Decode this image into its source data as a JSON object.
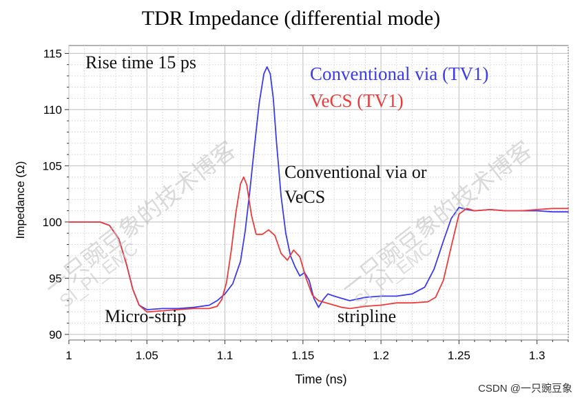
{
  "chart_data": {
    "type": "line",
    "title": "TDR Impedance (differential mode)",
    "xlabel": "Time (ns)",
    "ylabel": "Impedance (Ω)",
    "xlim": [
      1.0,
      1.32
    ],
    "ylim": [
      89.5,
      115.7
    ],
    "xticks": [
      "1",
      "1.05",
      "1.1",
      "1.15",
      "1.2",
      "1.25",
      "1.3"
    ],
    "yticks": [
      "90",
      "95",
      "100",
      "105",
      "110",
      "115"
    ],
    "grid": true,
    "legend_position": "top-right",
    "series": [
      {
        "name": "Conventional via (TV1)",
        "color": "#3a3aee",
        "x": [
          1.0,
          1.02,
          1.026,
          1.032,
          1.037,
          1.041,
          1.045,
          1.05,
          1.06,
          1.07,
          1.08,
          1.09,
          1.095,
          1.1,
          1.105,
          1.11,
          1.113,
          1.116,
          1.119,
          1.122,
          1.125,
          1.127,
          1.129,
          1.131,
          1.133,
          1.136,
          1.139,
          1.142,
          1.145,
          1.148,
          1.151,
          1.154,
          1.157,
          1.16,
          1.163,
          1.166,
          1.17,
          1.175,
          1.18,
          1.19,
          1.2,
          1.21,
          1.22,
          1.228,
          1.234,
          1.24,
          1.245,
          1.25,
          1.255,
          1.26,
          1.27,
          1.28,
          1.29,
          1.3,
          1.31,
          1.32
        ],
        "y": [
          100.0,
          100.0,
          99.7,
          98.5,
          96.2,
          94.0,
          92.6,
          92.2,
          92.3,
          92.3,
          92.4,
          92.6,
          93.0,
          93.6,
          94.5,
          96.5,
          99.2,
          102.8,
          106.8,
          110.6,
          113.2,
          113.8,
          113.2,
          111.0,
          107.2,
          102.3,
          99.0,
          97.0,
          96.0,
          95.2,
          95.5,
          94.8,
          93.2,
          92.4,
          93.1,
          93.6,
          93.4,
          93.2,
          93.0,
          93.3,
          93.4,
          93.4,
          93.6,
          94.2,
          95.8,
          98.3,
          100.3,
          101.3,
          101.1,
          101.0,
          101.1,
          101.0,
          101.0,
          101.0,
          100.9,
          100.9
        ]
      },
      {
        "name": "VeCS (TV1)",
        "color": "#ee3a3a",
        "x": [
          1.0,
          1.02,
          1.026,
          1.032,
          1.037,
          1.041,
          1.045,
          1.05,
          1.06,
          1.07,
          1.08,
          1.09,
          1.095,
          1.098,
          1.101,
          1.104,
          1.107,
          1.11,
          1.112,
          1.114,
          1.117,
          1.12,
          1.124,
          1.128,
          1.132,
          1.136,
          1.14,
          1.144,
          1.148,
          1.152,
          1.156,
          1.16,
          1.165,
          1.17,
          1.175,
          1.18,
          1.19,
          1.2,
          1.21,
          1.22,
          1.23,
          1.235,
          1.24,
          1.245,
          1.25,
          1.255,
          1.26,
          1.27,
          1.28,
          1.29,
          1.3,
          1.31,
          1.32
        ],
        "y": [
          100.0,
          100.0,
          99.7,
          98.5,
          96.2,
          94.0,
          92.6,
          92.0,
          92.1,
          92.2,
          92.3,
          92.3,
          92.5,
          93.1,
          94.6,
          97.4,
          100.8,
          103.4,
          104.0,
          103.3,
          100.6,
          98.9,
          98.9,
          99.3,
          98.8,
          97.2,
          96.6,
          97.5,
          96.9,
          95.0,
          93.5,
          93.0,
          92.8,
          92.6,
          92.4,
          92.3,
          92.5,
          92.6,
          92.8,
          92.8,
          92.9,
          93.3,
          94.8,
          97.8,
          100.7,
          101.2,
          101.0,
          101.1,
          101.0,
          101.0,
          101.1,
          101.2,
          101.2
        ]
      }
    ],
    "annotations": [
      "Rise time 15 ps",
      "Conventional via or",
      "VeCS",
      "Micro-strip",
      "stripline"
    ]
  },
  "watermarks": {
    "left_cn": "一只豌豆象的技术博客",
    "left_en": "SI_PI_EMC",
    "right_cn": "一只豌豆象的技术博客",
    "right_en": "SI_PI_EMC"
  },
  "credit": "CSDN @一只豌豆象"
}
